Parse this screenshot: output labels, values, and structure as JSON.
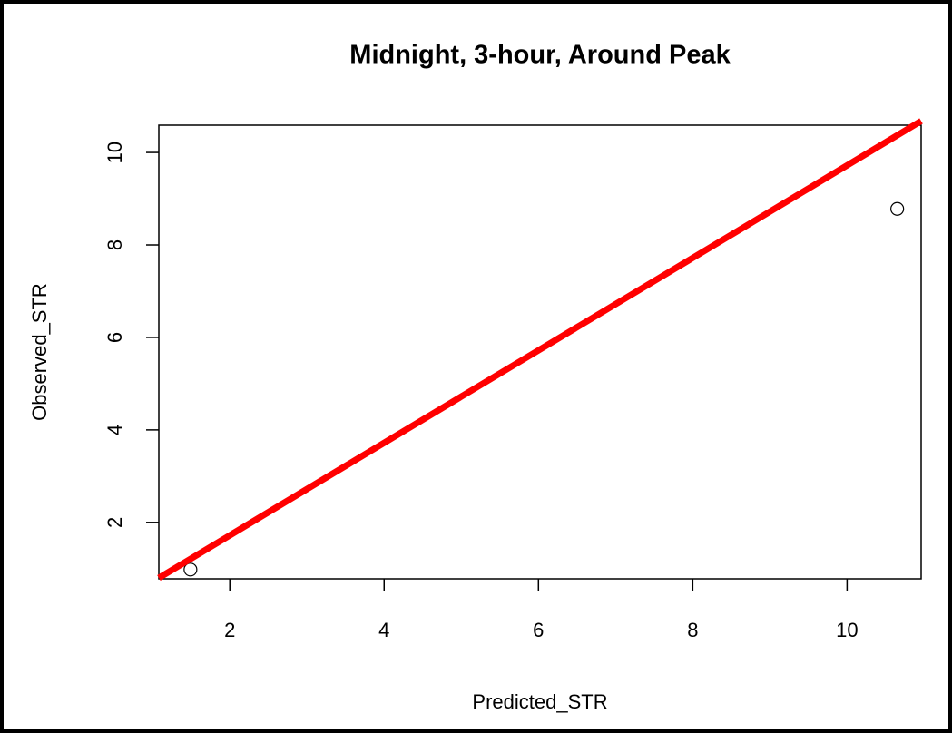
{
  "chart_data": {
    "type": "scatter",
    "title": "Midnight, 3-hour, Around Peak",
    "x_label": "Predicted_STR",
    "y_label": "Observed_STR",
    "x": [
      1.49,
      10.65
    ],
    "values": [
      0.98,
      8.78
    ],
    "color": "#000000",
    "xlim": [
      1.08,
      10.96
    ],
    "ylim": [
      0.78,
      10.59
    ],
    "xticks": [
      2,
      4,
      6,
      8,
      10
    ],
    "yticks": [
      2,
      4,
      6,
      8,
      10
    ],
    "abline": {
      "intercept": -0.28,
      "slope": 1.0,
      "color": "#ff0000"
    }
  }
}
